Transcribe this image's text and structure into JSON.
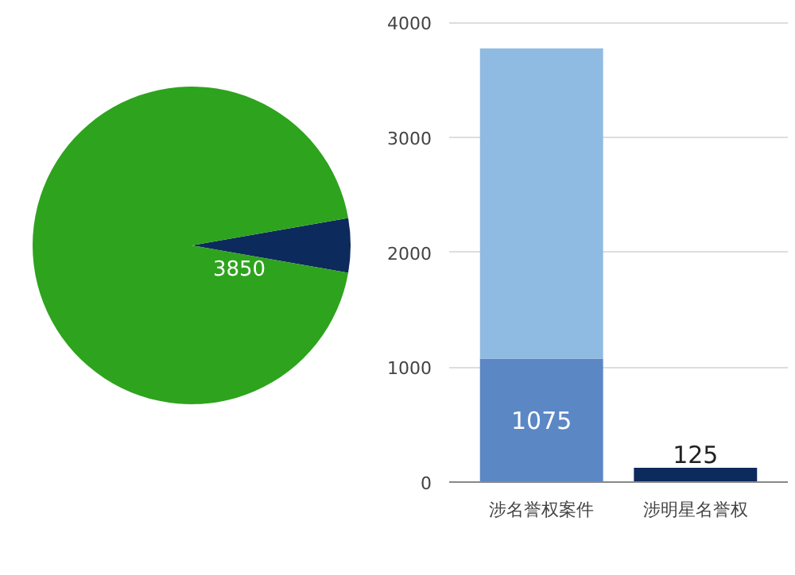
{
  "chart_data": [
    {
      "type": "pie",
      "categories": [
        null,
        null
      ],
      "values": [
        5.5,
        94.5
      ],
      "colors": [
        "#0d2a5c",
        "#2ea31e"
      ],
      "annotations": [
        "3850"
      ]
    },
    {
      "type": "bar",
      "stacked": true,
      "categories": [
        "涉名誉权案件",
        "涉明星名誉权"
      ],
      "series": [
        {
          "colors": [
            "#5b87c5",
            "#0d2a5c"
          ],
          "values": [
            1075,
            125
          ],
          "value_labels": [
            "1075",
            "125"
          ]
        },
        {
          "color": "#8fbbe2",
          "values": [
            2700,
            null
          ]
        }
      ],
      "ylim": [
        0,
        4000
      ],
      "yticks": [
        0,
        1000,
        2000,
        3000,
        4000
      ],
      "grid": "y"
    }
  ]
}
